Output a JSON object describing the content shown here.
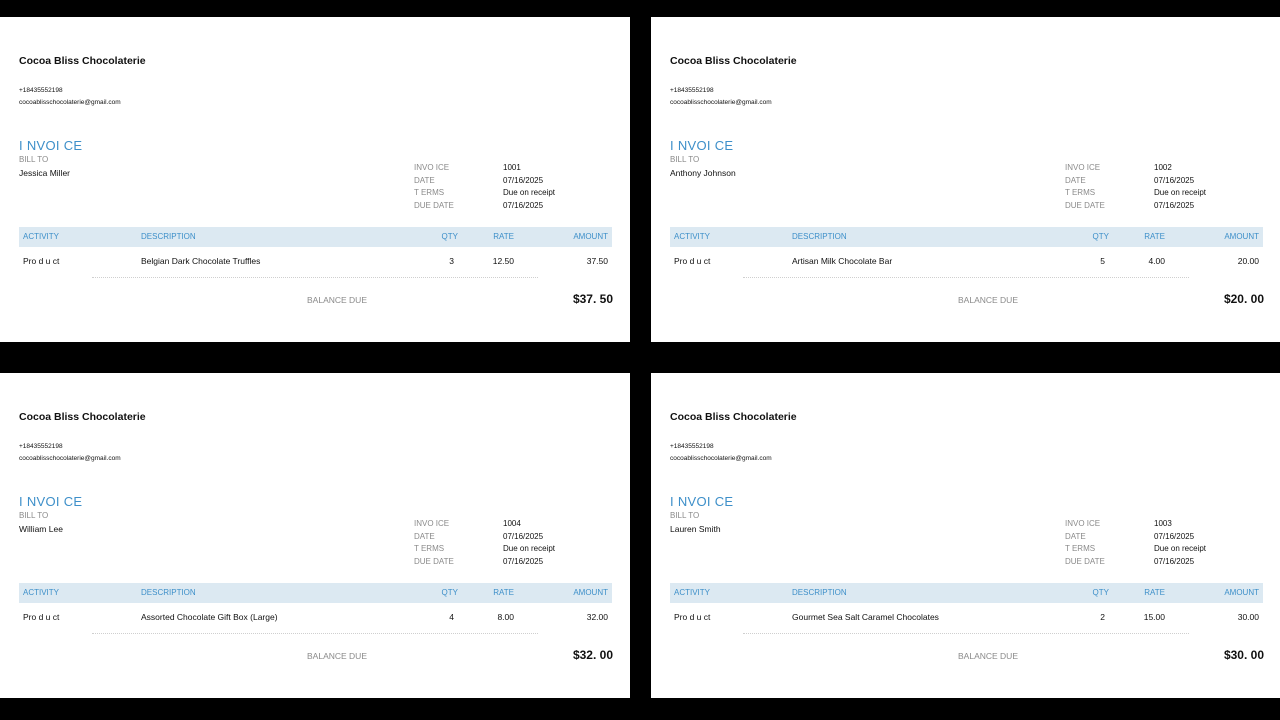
{
  "company": {
    "name": "Cocoa Bliss Chocolaterie",
    "phone": "+18435552198",
    "email": "cocoablisschocolaterie@gmail.com"
  },
  "labels": {
    "invoice_title": "I NVOI CE",
    "bill_to": "BILL TO",
    "invoice_no": "INVO ICE",
    "date": "DATE",
    "terms": "T ERMS",
    "due_date": "DUE DATE",
    "col_activity": "ACTIVITY",
    "col_description": "DESCRIPTION",
    "col_qty": "QTY",
    "col_rate": "RATE",
    "col_amount": "AMOUNT",
    "balance_due": "BALANCE DUE"
  },
  "invoices": [
    {
      "bill_to": "Jessica Miller",
      "invoice_no": "1001",
      "date": "07/16/2025",
      "terms": "Due on receipt",
      "due_date": "07/16/2025",
      "item": {
        "activity": "Pro d u ct",
        "description": "Belgian Dark Chocolate Truffles",
        "qty": "3",
        "rate": "12.50",
        "amount": "37.50"
      },
      "balance": "$37. 50"
    },
    {
      "bill_to": "Anthony Johnson",
      "invoice_no": "1002",
      "date": "07/16/2025",
      "terms": "Due on receipt",
      "due_date": "07/16/2025",
      "item": {
        "activity": "Pro d u ct",
        "description": "Artisan Milk Chocolate Bar",
        "qty": "5",
        "rate": "4.00",
        "amount": "20.00"
      },
      "balance": "$20. 00"
    },
    {
      "bill_to": "William Lee",
      "invoice_no": "1004",
      "date": "07/16/2025",
      "terms": "Due on receipt",
      "due_date": "07/16/2025",
      "item": {
        "activity": "Pro d u ct",
        "description": "Assorted Chocolate Gift Box (Large)",
        "qty": "4",
        "rate": "8.00",
        "amount": "32.00"
      },
      "balance": "$32. 00"
    },
    {
      "bill_to": "Lauren Smith",
      "invoice_no": "1003",
      "date": "07/16/2025",
      "terms": "Due on receipt",
      "due_date": "07/16/2025",
      "item": {
        "activity": "Pro d u ct",
        "description": "Gourmet Sea Salt Caramel Chocolates",
        "qty": "2",
        "rate": "15.00",
        "amount": "30.00"
      },
      "balance": "$30. 00"
    }
  ],
  "colors": {
    "accent": "#3d8fc9",
    "header_bg": "#dce9f2",
    "muted": "#8a8a8a"
  }
}
